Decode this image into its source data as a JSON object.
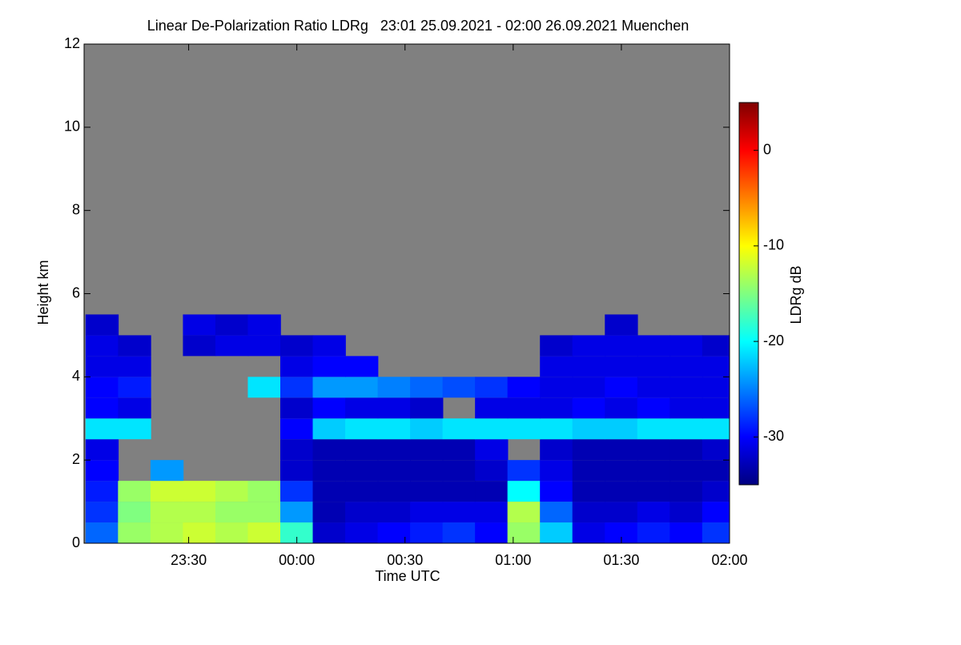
{
  "chart_data": {
    "type": "heatmap",
    "title": "Linear De-Polarization Ratio LDRg   23:01 25.09.2021 - 02:00 26.09.2021 Muenchen",
    "x_label": "Time UTC",
    "y_label": "Height km",
    "xlim": [
      23.0167,
      26
    ],
    "xticks": [
      {
        "value": 23.5,
        "label": "23:30"
      },
      {
        "value": 24,
        "label": "00:00"
      },
      {
        "value": 24.5,
        "label": "00:30"
      },
      {
        "value": 25,
        "label": "01:00"
      },
      {
        "value": 25.5,
        "label": "01:30"
      },
      {
        "value": 26,
        "label": "02:00"
      }
    ],
    "ylim": [
      0,
      12
    ],
    "yticks": [
      0,
      2,
      4,
      6,
      8,
      10,
      12
    ],
    "background": "#808080",
    "x": [
      23.1,
      23.25,
      23.4,
      23.55,
      23.7,
      23.85,
      24.0,
      24.15,
      24.3,
      24.45,
      24.6,
      24.75,
      24.9,
      25.05,
      25.2,
      25.35,
      25.5,
      25.65,
      25.8,
      25.95
    ],
    "y": [
      0.25,
      0.75,
      1.25,
      1.75,
      2.25,
      2.75,
      3.25,
      3.75,
      4.25,
      4.75,
      5.25,
      5.75
    ],
    "z": [
      [
        -26,
        -14,
        -13,
        -12,
        -13,
        -12,
        -18,
        -32,
        -31,
        -30,
        -29,
        -28,
        -30,
        -14,
        -22,
        -31,
        -30,
        -29,
        -30,
        -28
      ],
      [
        -28,
        -15,
        -13,
        -13,
        -14,
        -14,
        -24,
        -33,
        -32,
        -32,
        -31,
        -31,
        -31,
        -13,
        -26,
        -32,
        -32,
        -31,
        -32,
        -30
      ],
      [
        -29,
        -14,
        -12,
        -12,
        -13,
        -14,
        -28,
        -33,
        -33,
        -33,
        -33,
        -33,
        -33,
        -20,
        -30,
        -33,
        -33,
        -33,
        -33,
        -32
      ],
      [
        -30,
        null,
        -24,
        null,
        null,
        null,
        -32,
        -33,
        -33,
        -33,
        -33,
        -33,
        -32,
        -28,
        -31,
        -33,
        -33,
        -33,
        -33,
        -33
      ],
      [
        -31,
        null,
        null,
        null,
        null,
        null,
        -32,
        -33,
        -33,
        -33,
        -33,
        -33,
        -31,
        null,
        -32,
        -33,
        -33,
        -33,
        -33,
        -32
      ],
      [
        -21,
        -21,
        null,
        null,
        null,
        null,
        -30,
        -22,
        -21,
        -21,
        -22,
        -21,
        -21,
        -21,
        -21,
        -22,
        -22,
        -21,
        -21,
        -21
      ],
      [
        -30,
        -31,
        null,
        null,
        null,
        null,
        -32,
        -30,
        -31,
        -31,
        -32,
        null,
        -31,
        -31,
        -31,
        -30,
        -31,
        -30,
        -31,
        -31
      ],
      [
        -30,
        -29,
        null,
        null,
        null,
        -21,
        -28,
        -24,
        -24,
        -25,
        -26,
        -27,
        -28,
        -30,
        -31,
        -31,
        -30,
        -31,
        -31,
        -31
      ],
      [
        -31,
        -31,
        null,
        null,
        null,
        null,
        -31,
        -30,
        -30,
        null,
        null,
        null,
        null,
        null,
        -31,
        -31,
        -31,
        -31,
        -31,
        -31
      ],
      [
        -31,
        -32,
        null,
        -32,
        -31,
        -31,
        -32,
        -31,
        null,
        null,
        null,
        null,
        null,
        null,
        -32,
        -31,
        -31,
        -31,
        -31,
        -32
      ],
      [
        -32,
        null,
        null,
        -31,
        -32,
        -31,
        null,
        null,
        null,
        null,
        null,
        null,
        null,
        null,
        null,
        null,
        -32,
        null,
        null,
        null
      ],
      [
        null,
        null,
        null,
        null,
        null,
        null,
        null,
        null,
        null,
        null,
        null,
        null,
        null,
        null,
        null,
        null,
        null,
        null,
        null,
        null
      ]
    ],
    "colorbar": {
      "label": "LDRg dB",
      "lim": [
        -35,
        5
      ],
      "ticks": [
        0,
        -10,
        -20,
        -30
      ],
      "colormap": "jet"
    }
  }
}
